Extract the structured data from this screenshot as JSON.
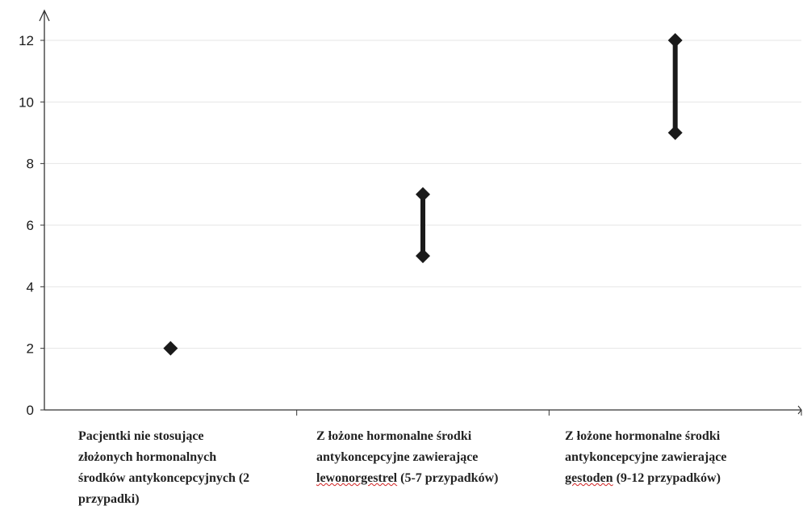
{
  "chart_data": {
    "type": "range",
    "title": "",
    "xlabel": "",
    "ylabel": "",
    "ylim": [
      0,
      12
    ],
    "yticks": [
      "0",
      "2",
      "4",
      "6",
      "8",
      "10",
      "12"
    ],
    "grid": true,
    "legend": "none",
    "categories": [
      "Pacjentki nie stosujące złożonych hormonalnych środków antykoncepcyjnych (2 przypadki)",
      "Z łożone hormonalne środki antykoncepcyjne zawierające lewonorgestrel (5-7 przypadków)",
      "Z łożone hormonalne środki antykoncepcyjne zawierające gestoden (9-12 przypadków)"
    ],
    "series": [
      {
        "low": 2,
        "high": 2
      },
      {
        "low": 5,
        "high": 7
      },
      {
        "low": 9,
        "high": 12
      }
    ],
    "colors": {
      "marker": "#1a1a1a",
      "grid": "#e6e6e6",
      "axis": "#333333",
      "underline": "#d02020"
    }
  },
  "labels": {
    "cat1": {
      "line1": "Pacjentki nie stosujące",
      "line2": "złożonych hormonalnych",
      "line3": "środków antykoncepcyjnych (2",
      "line4": "przypadki)"
    },
    "cat2": {
      "line1": "Z łożone hormonalne środki",
      "line2": "antykoncepcyjne zawierające",
      "line3_u": "lewonorgestrel",
      "line3_rest": " (5-7 przypadków)"
    },
    "cat3": {
      "line1": "Z łożone hormonalne środki",
      "line2": "antykoncepcyjne zawierające",
      "line3_u": "gestoden",
      "line3_rest": " (9-12 przypadków)"
    }
  }
}
